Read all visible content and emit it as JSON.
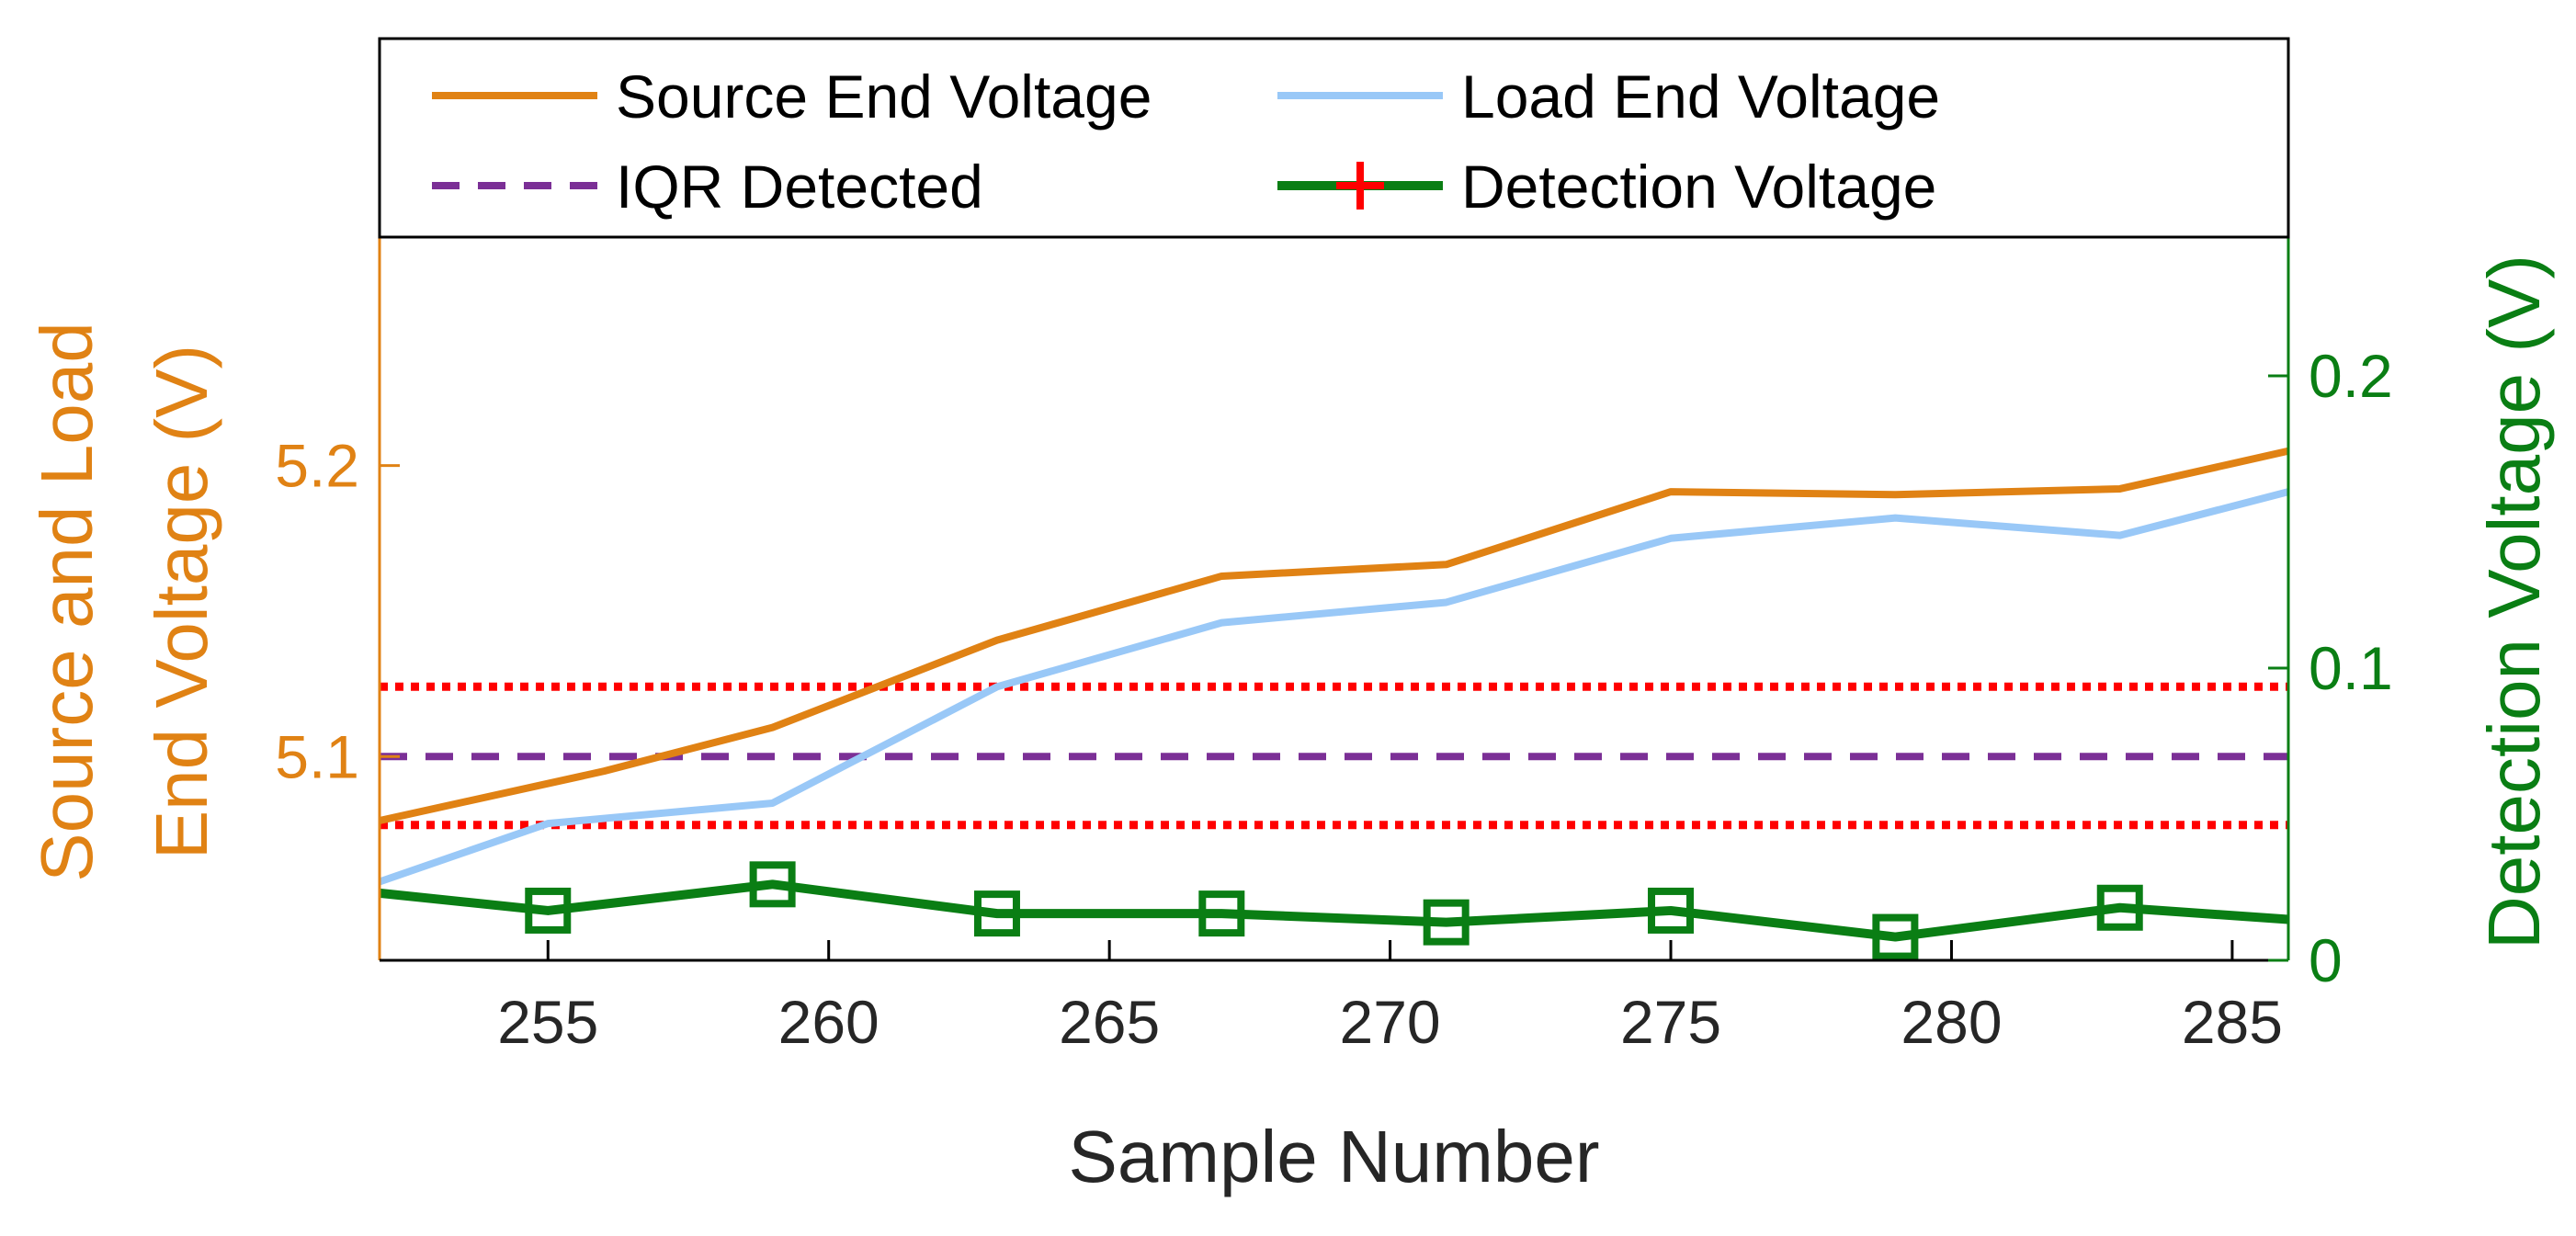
{
  "chart_data": {
    "type": "line",
    "xlabel": "Sample Number",
    "ylabel_left": "Source and Load End Voltage (V)",
    "ylabel_left_lines": [
      "Source and Load",
      "End Voltage (V)"
    ],
    "ylabel_right": "Detection Voltage (V)",
    "xlim": [
      252,
      286
    ],
    "ylim_left": [
      5.03,
      5.2785
    ],
    "ylim_right": [
      0,
      0.2475
    ],
    "x_ticks": [
      255,
      260,
      265,
      270,
      275,
      280,
      285
    ],
    "x_tick_labels": [
      "255",
      "260",
      "265",
      "270",
      "275",
      "280",
      "285"
    ],
    "y_left_ticks": [
      5.1,
      5.2
    ],
    "y_left_tick_labels": [
      "5.1",
      "5.2"
    ],
    "y_right_ticks": [
      0,
      0.1,
      0.2
    ],
    "y_right_tick_labels": [
      "0",
      "0.1",
      "0.2"
    ],
    "colors": {
      "source": "#E08214",
      "load": "#99C8F7",
      "iqr": "#7B2F96",
      "bounds": "#FF0000",
      "detection": "#0A7E14",
      "left_axis": "#E08214",
      "right_axis": "#0A7E14",
      "frame": "#000000"
    },
    "series": [
      {
        "name": "Source End Voltage",
        "axis": "left",
        "x": [
          252,
          256,
          259,
          263,
          267,
          271,
          275,
          279,
          283,
          286
        ],
        "values": [
          5.078,
          5.095,
          5.11,
          5.14,
          5.162,
          5.166,
          5.191,
          5.19,
          5.192,
          5.205
        ]
      },
      {
        "name": "Load End Voltage",
        "axis": "left",
        "x": [
          252,
          255,
          259,
          263,
          267,
          271,
          275,
          279,
          283,
          286
        ],
        "values": [
          5.057,
          5.077,
          5.084,
          5.124,
          5.146,
          5.153,
          5.175,
          5.182,
          5.176,
          5.191
        ]
      },
      {
        "name": "IQR Detected",
        "axis": "left",
        "style": "dashed",
        "x": [
          252,
          286
        ],
        "values": [
          5.1,
          5.1
        ]
      },
      {
        "name": "Detection Voltage",
        "axis": "right",
        "marker": "square",
        "x": [
          252,
          255,
          259,
          263,
          267,
          271,
          275,
          279,
          283,
          286
        ],
        "values": [
          0.023,
          0.017,
          0.026,
          0.016,
          0.016,
          0.013,
          0.017,
          0.008,
          0.018,
          0.014
        ],
        "marker_x": [
          255,
          259,
          263,
          267,
          271,
          275,
          279,
          283
        ]
      }
    ],
    "threshold_lines": [
      {
        "name": "upper-bound",
        "axis": "left",
        "value": 5.124,
        "style": "dotted"
      },
      {
        "name": "lower-bound",
        "axis": "left",
        "value": 5.0765,
        "style": "dotted"
      }
    ],
    "legend": {
      "position": "top",
      "entries": [
        "Source End Voltage",
        "Load End Voltage",
        "IQR Detected",
        "Detection Voltage"
      ]
    }
  }
}
